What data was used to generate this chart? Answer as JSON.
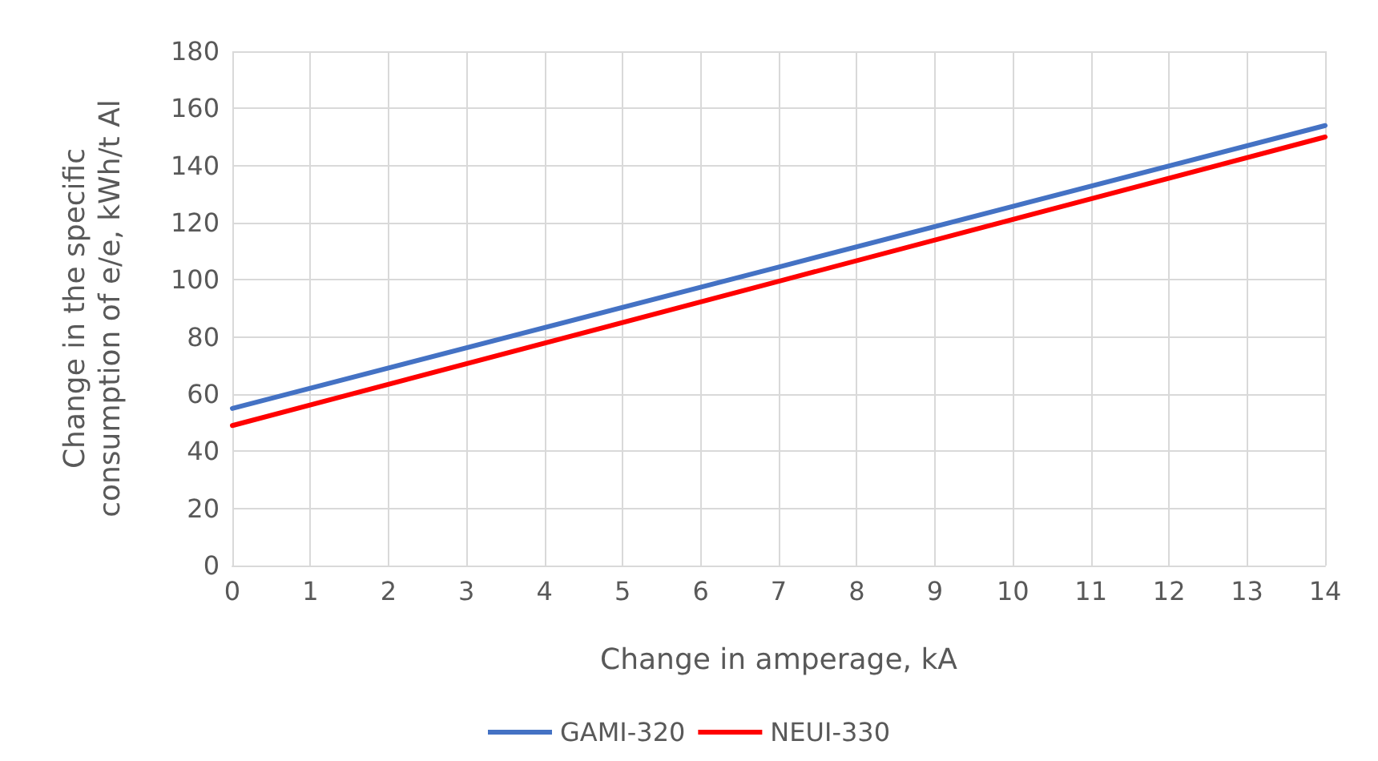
{
  "chart_data": {
    "type": "line",
    "xlabel": "Change in amperage, kA",
    "ylabel": "Change in the specific consumption of e/e, kWh/t Al",
    "series": [
      {
        "name": "GAMI-320",
        "color": "#4472c4",
        "x": [
          0,
          7,
          14
        ],
        "values": [
          55,
          104.5,
          154
        ]
      },
      {
        "name": "NEUI-330",
        "color": "#ff0000",
        "x": [
          0,
          7,
          14
        ],
        "values": [
          49,
          99.5,
          150
        ]
      }
    ],
    "xlim": [
      0,
      14
    ],
    "xticks": [
      0,
      1,
      2,
      3,
      4,
      5,
      6,
      7,
      8,
      9,
      10,
      11,
      12,
      13,
      14
    ],
    "ylim": [
      0,
      180
    ],
    "yticks": [
      0,
      20,
      40,
      60,
      80,
      100,
      120,
      140,
      160,
      180
    ],
    "grid": true,
    "legend": "bottom",
    "marker": "none",
    "line_style": "solid"
  }
}
